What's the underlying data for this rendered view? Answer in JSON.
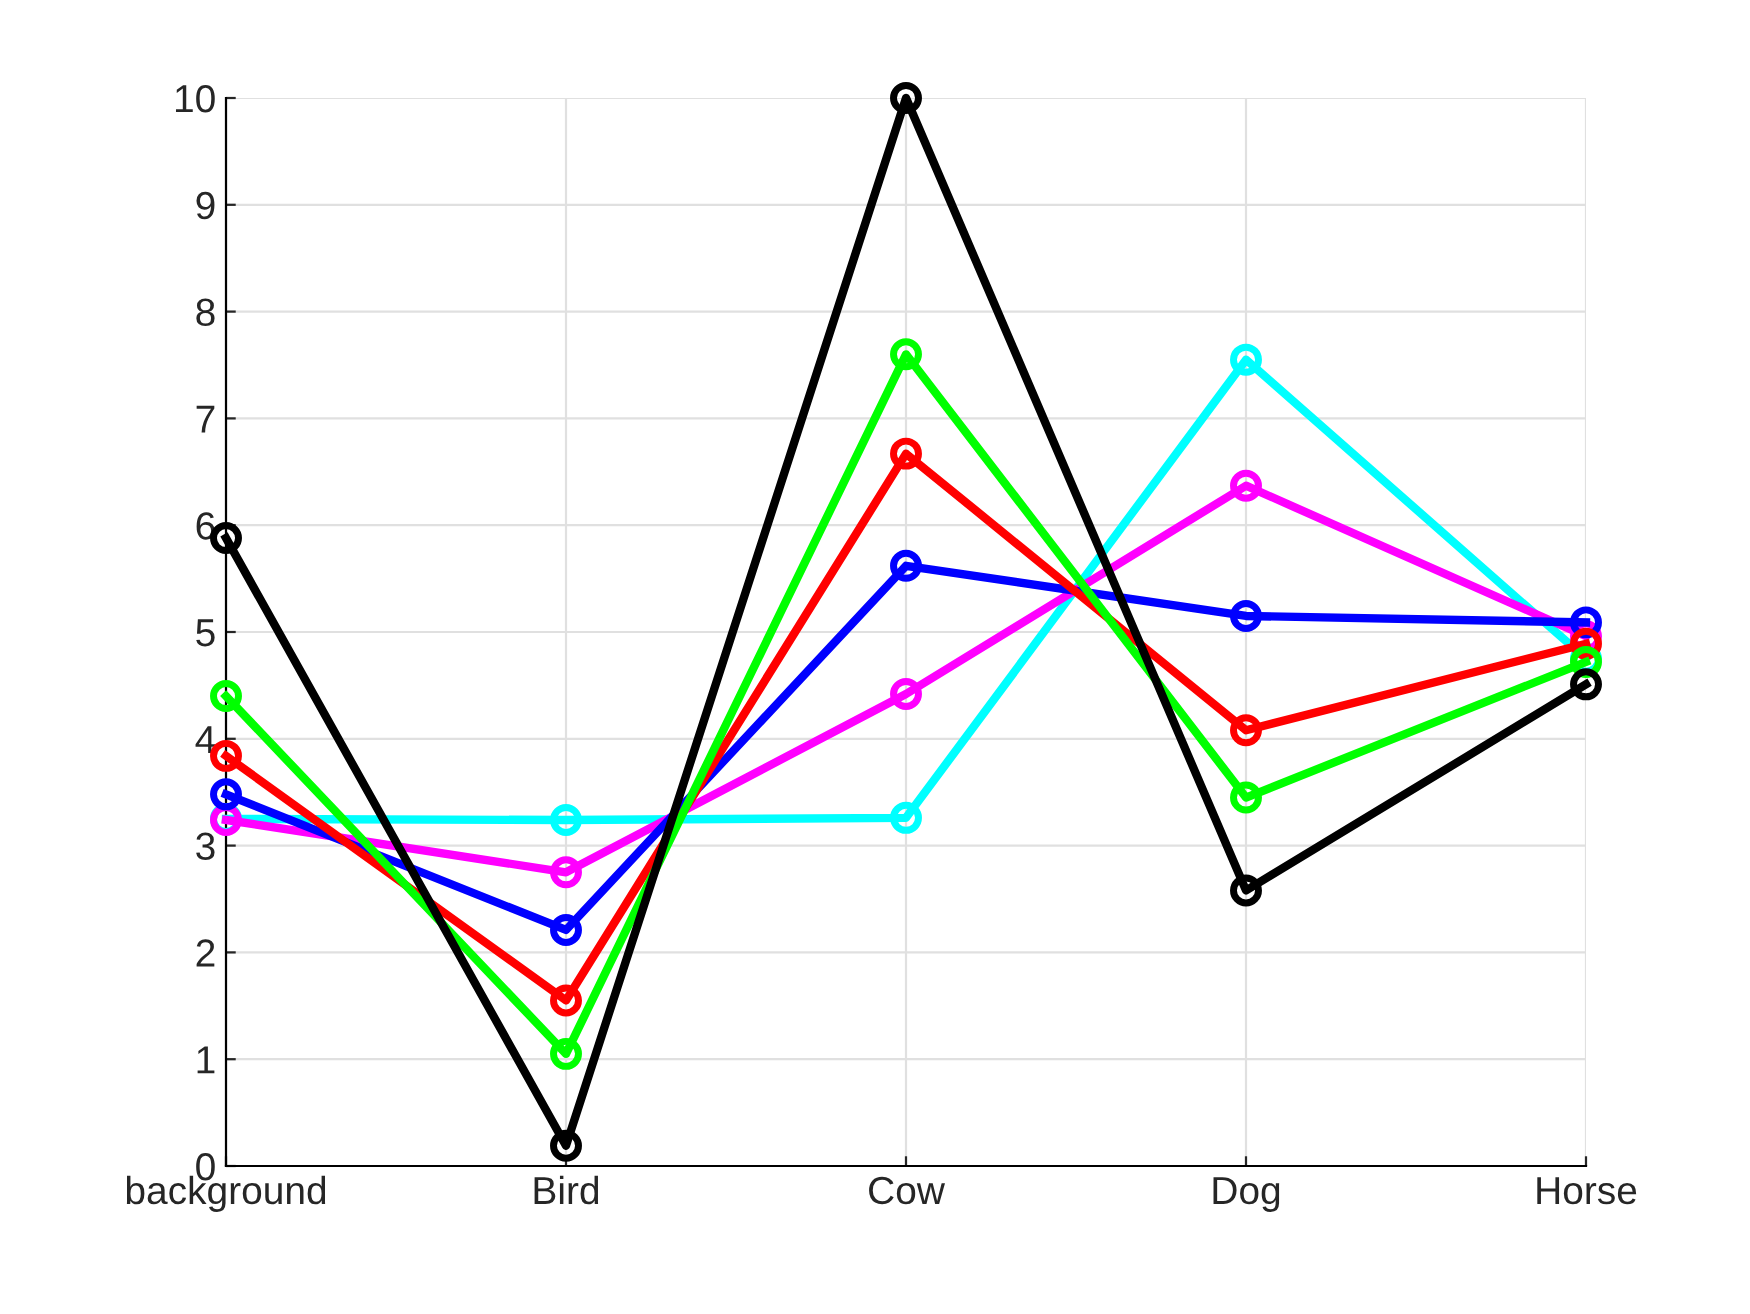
{
  "chart_data": {
    "type": "line",
    "categories": [
      "background",
      "Bird",
      "Cow",
      "Dog",
      "Horse"
    ],
    "series": [
      {
        "color": "#00ffff",
        "values": [
          3.25,
          3.24,
          3.26,
          7.55,
          4.75
        ]
      },
      {
        "color": "#ff00ff",
        "values": [
          3.24,
          2.75,
          4.42,
          6.37,
          4.96
        ]
      },
      {
        "color": "#0000ff",
        "values": [
          3.48,
          2.21,
          5.62,
          5.15,
          5.09
        ]
      },
      {
        "color": "#ff0000",
        "values": [
          3.84,
          1.55,
          6.67,
          4.08,
          4.89
        ]
      },
      {
        "color": "#00ff00",
        "values": [
          4.4,
          1.05,
          7.6,
          3.45,
          4.72
        ]
      },
      {
        "color": "#000000",
        "values": [
          5.88,
          0.19,
          10,
          2.58,
          4.51
        ]
      }
    ],
    "ylim": [
      0,
      10
    ],
    "yticks": [
      0,
      1,
      2,
      3,
      4,
      5,
      6,
      7,
      8,
      9,
      10
    ],
    "grid": true,
    "marker": "circle",
    "line_style": "solid"
  }
}
